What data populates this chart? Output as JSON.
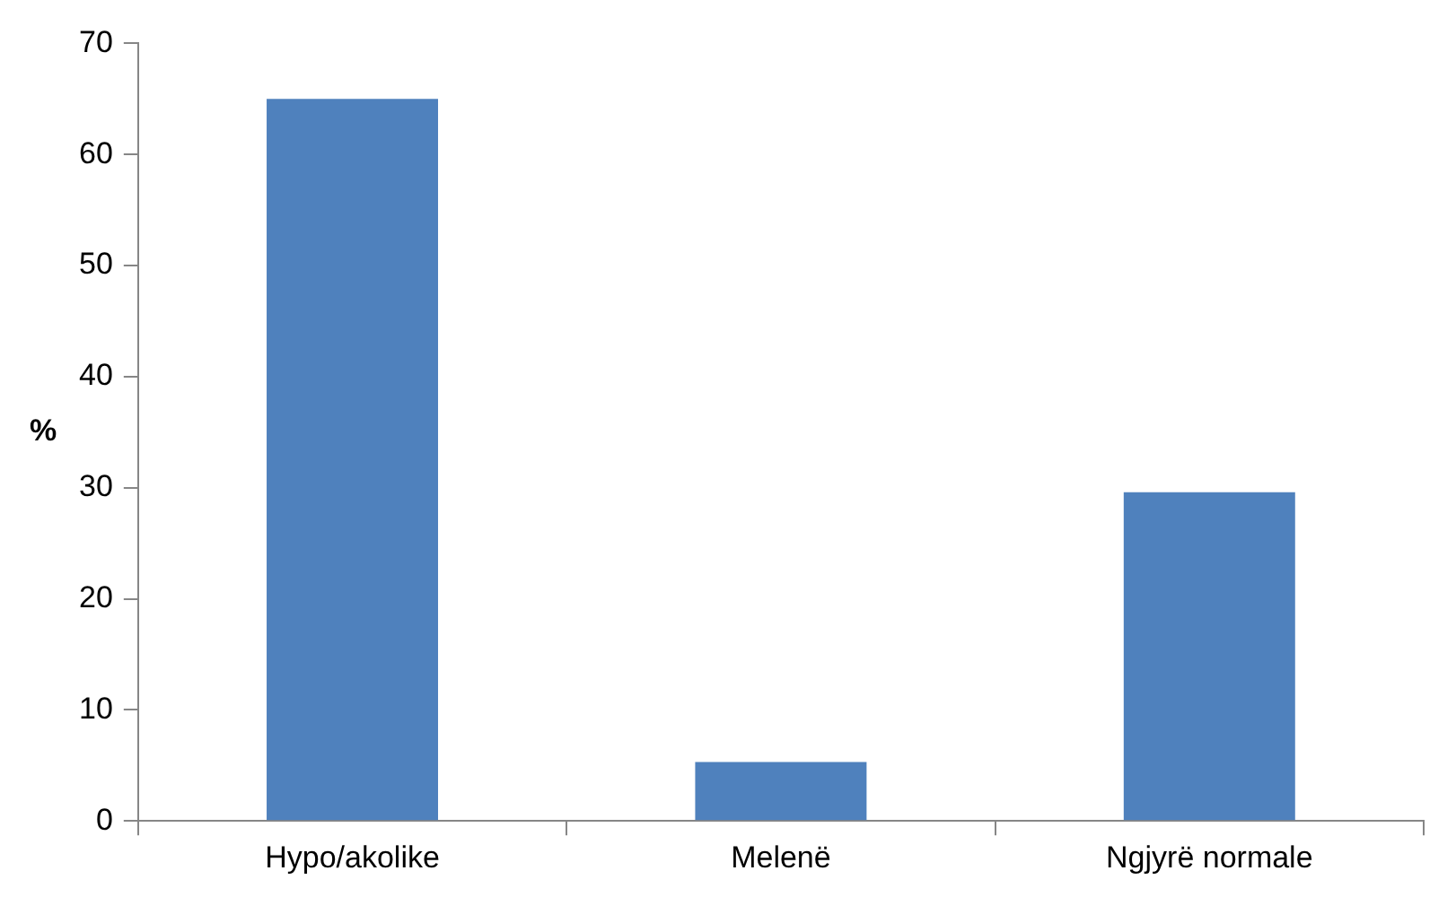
{
  "chart_data": {
    "type": "bar",
    "ylabel": "%",
    "categories": [
      "Hypo/akolike",
      "Melenë",
      "Ngjyrë normale"
    ],
    "values": [
      65,
      5.3,
      29.6
    ],
    "color": "#4f81bd",
    "ylim": [
      0,
      70
    ],
    "yticks": [
      0,
      10,
      20,
      30,
      40,
      50,
      60,
      70
    ],
    "grid": false,
    "legend": false
  }
}
